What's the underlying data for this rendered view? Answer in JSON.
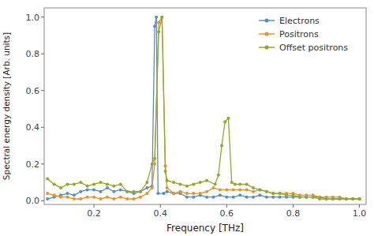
{
  "chart_data": {
    "type": "line",
    "xlabel": "Frequency [THz]",
    "ylabel": "Spectral energy density [Arb. units]",
    "xlim": [
      0.05,
      1.02
    ],
    "ylim": [
      -0.02,
      1.05
    ],
    "xticks": [
      0.2,
      0.4,
      0.6,
      0.8,
      {
        "value": 1.0,
        "label": "1.0"
      }
    ],
    "yticks": [
      {
        "value": 0.0,
        "label": "0.0"
      },
      0.2,
      0.4,
      0.6,
      0.8,
      {
        "value": 1.0,
        "label": "1.0"
      }
    ],
    "grid": false,
    "legend": "upper right",
    "marker": "circle",
    "series": [
      {
        "name": "Electrons",
        "color": "#5b8db8",
        "x": [
          0.06,
          0.08,
          0.1,
          0.12,
          0.14,
          0.16,
          0.18,
          0.2,
          0.22,
          0.24,
          0.26,
          0.28,
          0.3,
          0.32,
          0.34,
          0.36,
          0.375,
          0.383,
          0.388,
          0.393,
          0.41,
          0.42,
          0.44,
          0.46,
          0.48,
          0.5,
          0.52,
          0.54,
          0.56,
          0.58,
          0.6,
          0.62,
          0.64,
          0.66,
          0.68,
          0.7,
          0.72,
          0.74,
          0.76,
          0.78,
          0.8,
          0.82,
          0.84,
          0.86,
          0.88,
          0.9,
          0.92,
          0.94,
          0.96,
          0.98,
          1.0
        ],
        "values": [
          0.01,
          0.02,
          0.03,
          0.04,
          0.03,
          0.05,
          0.06,
          0.06,
          0.05,
          0.07,
          0.05,
          0.06,
          0.05,
          0.04,
          0.05,
          0.07,
          0.08,
          0.95,
          1.0,
          0.04,
          0.04,
          0.05,
          0.04,
          0.04,
          0.02,
          0.02,
          0.03,
          0.02,
          0.02,
          0.03,
          0.02,
          0.02,
          0.03,
          0.02,
          0.02,
          0.03,
          0.02,
          0.02,
          0.02,
          0.02,
          0.02,
          0.02,
          0.02,
          0.02,
          0.02,
          0.01,
          0.01,
          0.01,
          0.01,
          0.01,
          0.01
        ]
      },
      {
        "name": "Positrons",
        "color": "#e8922a",
        "x": [
          0.06,
          0.08,
          0.1,
          0.12,
          0.14,
          0.16,
          0.18,
          0.2,
          0.22,
          0.24,
          0.26,
          0.28,
          0.3,
          0.32,
          0.34,
          0.36,
          0.375,
          0.383,
          0.395,
          0.405,
          0.415,
          0.42,
          0.44,
          0.46,
          0.48,
          0.5,
          0.52,
          0.54,
          0.56,
          0.58,
          0.6,
          0.62,
          0.64,
          0.66,
          0.68,
          0.7,
          0.72,
          0.74,
          0.76,
          0.78,
          0.8,
          0.82,
          0.84,
          0.86,
          0.88,
          0.9,
          0.92,
          0.94,
          0.96,
          0.98,
          1.0
        ],
        "values": [
          0.04,
          0.03,
          0.02,
          0.02,
          0.01,
          0.01,
          0.02,
          0.02,
          0.01,
          0.02,
          0.01,
          0.02,
          0.01,
          0.01,
          0.02,
          0.04,
          0.07,
          0.2,
          0.97,
          1.0,
          0.19,
          0.07,
          0.04,
          0.05,
          0.04,
          0.04,
          0.04,
          0.05,
          0.07,
          0.06,
          0.06,
          0.06,
          0.06,
          0.06,
          0.05,
          0.06,
          0.05,
          0.04,
          0.04,
          0.04,
          0.04,
          0.03,
          0.03,
          0.03,
          0.02,
          0.02,
          0.02,
          0.02,
          0.01,
          0.01,
          0.01
        ]
      },
      {
        "name": "Offset positrons",
        "color": "#8faa2b",
        "x": [
          0.06,
          0.08,
          0.1,
          0.12,
          0.14,
          0.16,
          0.18,
          0.2,
          0.22,
          0.24,
          0.26,
          0.28,
          0.3,
          0.32,
          0.34,
          0.36,
          0.375,
          0.383,
          0.395,
          0.405,
          0.415,
          0.42,
          0.44,
          0.46,
          0.48,
          0.5,
          0.52,
          0.54,
          0.565,
          0.575,
          0.585,
          0.595,
          0.605,
          0.615,
          0.625,
          0.64,
          0.66,
          0.68,
          0.7,
          0.72,
          0.74,
          0.76,
          0.78,
          0.8,
          0.82,
          0.84,
          0.86,
          0.88,
          0.9,
          0.92,
          0.94,
          0.96,
          0.98,
          1.0
        ],
        "values": [
          0.12,
          0.09,
          0.07,
          0.09,
          0.09,
          0.1,
          0.08,
          0.09,
          0.1,
          0.09,
          0.08,
          0.09,
          0.05,
          0.05,
          0.05,
          0.1,
          0.2,
          0.23,
          0.92,
          1.0,
          0.16,
          0.11,
          0.1,
          0.09,
          0.08,
          0.09,
          0.1,
          0.11,
          0.09,
          0.14,
          0.3,
          0.43,
          0.45,
          0.1,
          0.09,
          0.09,
          0.09,
          0.07,
          0.06,
          0.05,
          0.04,
          0.04,
          0.03,
          0.03,
          0.02,
          0.02,
          0.02,
          0.01,
          0.01,
          0.01,
          0.01,
          0.01,
          0.01,
          0.01
        ]
      }
    ]
  }
}
